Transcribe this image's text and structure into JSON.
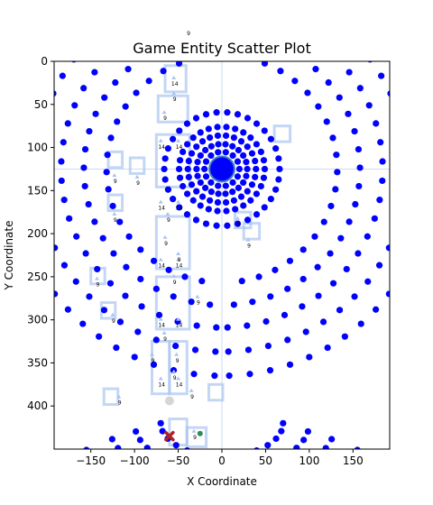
{
  "chart_data": {
    "type": "scatter",
    "title": "Game Entity Scatter Plot",
    "xlabel": "X Coordinate",
    "ylabel": "Y Coordinate",
    "top_annotation": "9",
    "xlim": [
      -192,
      192
    ],
    "ylim": [
      450,
      0
    ],
    "y_inverted": true,
    "xticks": [
      -150,
      -100,
      -50,
      0,
      50,
      100,
      150
    ],
    "yticks": [
      0,
      50,
      100,
      150,
      200,
      250,
      300,
      350,
      400
    ],
    "grid": false,
    "legend": "none",
    "colors": {
      "dots": "#0000ff",
      "core": "#3f7fbf",
      "hatch": "#aac4f0",
      "marker_x": "#b22222",
      "gray": "#cccccc"
    },
    "ring_center": [
      0,
      125
    ],
    "rings": [
      {
        "radius": 66,
        "count": 34
      },
      {
        "radius": 49,
        "count": 30
      },
      {
        "radius": 39,
        "count": 26
      },
      {
        "radius": 29,
        "count": 22
      },
      {
        "radius": 20,
        "count": 14
      }
    ],
    "core_radius": 14,
    "outer_arcs": [
      {
        "radius": 132,
        "start_deg": -170,
        "end_deg": 170,
        "count": 40
      },
      {
        "radius": 158,
        "start_deg": -175,
        "end_deg": 175,
        "count": 46
      },
      {
        "radius": 184,
        "start_deg": -178,
        "end_deg": 178,
        "count": 52
      },
      {
        "radius": 212,
        "start_deg": -178,
        "end_deg": 178,
        "count": 58
      },
      {
        "radius": 240,
        "start_deg": -178,
        "end_deg": 178,
        "count": 64
      }
    ],
    "lower_ring_center": [
      0,
      420
    ],
    "lower_rings": [
      {
        "radius": 70,
        "start_deg": 180,
        "end_deg": 360,
        "count": 14
      },
      {
        "radius": 100,
        "start_deg": 190,
        "end_deg": 350,
        "count": 16
      },
      {
        "radius": 130,
        "start_deg": 195,
        "end_deg": 345,
        "count": 18
      },
      {
        "radius": 165,
        "start_deg": 200,
        "end_deg": 340,
        "count": 18
      }
    ],
    "hatch_boxes": [
      {
        "x": -65,
        "y": 5,
        "w": 24,
        "h": 30
      },
      {
        "x": -73,
        "y": 40,
        "w": 34,
        "h": 30
      },
      {
        "x": -75,
        "y": 85,
        "w": 38,
        "h": 60
      },
      {
        "x": -75,
        "y": 180,
        "w": 38,
        "h": 60
      },
      {
        "x": -75,
        "y": 250,
        "w": 38,
        "h": 60
      },
      {
        "x": -80,
        "y": 325,
        "w": 20,
        "h": 60
      },
      {
        "x": -60,
        "y": 325,
        "w": 20,
        "h": 60
      },
      {
        "x": -60,
        "y": 415,
        "w": 20,
        "h": 30
      },
      {
        "x": -40,
        "y": 425,
        "w": 22,
        "h": 22
      },
      {
        "x": -130,
        "y": 105,
        "w": 16,
        "h": 18
      },
      {
        "x": -105,
        "y": 112,
        "w": 16,
        "h": 18
      },
      {
        "x": -130,
        "y": 155,
        "w": 16,
        "h": 18
      },
      {
        "x": -150,
        "y": 240,
        "w": 16,
        "h": 18
      },
      {
        "x": -138,
        "y": 280,
        "w": 16,
        "h": 18
      },
      {
        "x": -135,
        "y": 380,
        "w": 16,
        "h": 18
      },
      {
        "x": 15,
        "y": 175,
        "w": 18,
        "h": 18
      },
      {
        "x": 25,
        "y": 188,
        "w": 18,
        "h": 18
      },
      {
        "x": 60,
        "y": 75,
        "w": 18,
        "h": 18
      },
      {
        "x": -15,
        "y": 375,
        "w": 16,
        "h": 18
      }
    ],
    "annotations": [
      {
        "x": -55,
        "y": 22,
        "text": "14"
      },
      {
        "x": -55,
        "y": 40,
        "text": "9"
      },
      {
        "x": -66,
        "y": 62,
        "text": "9"
      },
      {
        "x": -70,
        "y": 95,
        "text": "14"
      },
      {
        "x": -50,
        "y": 95,
        "text": "14"
      },
      {
        "x": -123,
        "y": 135,
        "text": "9"
      },
      {
        "x": -97,
        "y": 137,
        "text": "9"
      },
      {
        "x": -70,
        "y": 166,
        "text": "14"
      },
      {
        "x": -50,
        "y": 166,
        "text": "14"
      },
      {
        "x": -123,
        "y": 180,
        "text": "9"
      },
      {
        "x": -62,
        "y": 180,
        "text": "9"
      },
      {
        "x": 18,
        "y": 185,
        "text": "9"
      },
      {
        "x": -65,
        "y": 207,
        "text": "9"
      },
      {
        "x": 30,
        "y": 210,
        "text": "9"
      },
      {
        "x": -70,
        "y": 233,
        "text": "14"
      },
      {
        "x": -50,
        "y": 233,
        "text": "14"
      },
      {
        "x": -50,
        "y": 226,
        "text": "9"
      },
      {
        "x": -143,
        "y": 255,
        "text": "9"
      },
      {
        "x": -55,
        "y": 252,
        "text": "9"
      },
      {
        "x": -28,
        "y": 276,
        "text": "9"
      },
      {
        "x": -125,
        "y": 297,
        "text": "9"
      },
      {
        "x": -70,
        "y": 302,
        "text": "14"
      },
      {
        "x": -50,
        "y": 302,
        "text": "14"
      },
      {
        "x": -66,
        "y": 318,
        "text": "9"
      },
      {
        "x": -80,
        "y": 343,
        "text": "9"
      },
      {
        "x": -52,
        "y": 343,
        "text": "9"
      },
      {
        "x": -55,
        "y": 363,
        "text": "9"
      },
      {
        "x": -70,
        "y": 371,
        "text": "14"
      },
      {
        "x": -50,
        "y": 371,
        "text": "14"
      },
      {
        "x": -35,
        "y": 385,
        "text": "9"
      },
      {
        "x": -118,
        "y": 392,
        "text": "9"
      },
      {
        "x": -32,
        "y": 432,
        "text": "9"
      }
    ],
    "x_marker": {
      "x": -60,
      "y": 435
    },
    "gray_point": {
      "x": -60,
      "y": 394
    },
    "green_point": {
      "x": -25,
      "y": 432
    }
  }
}
